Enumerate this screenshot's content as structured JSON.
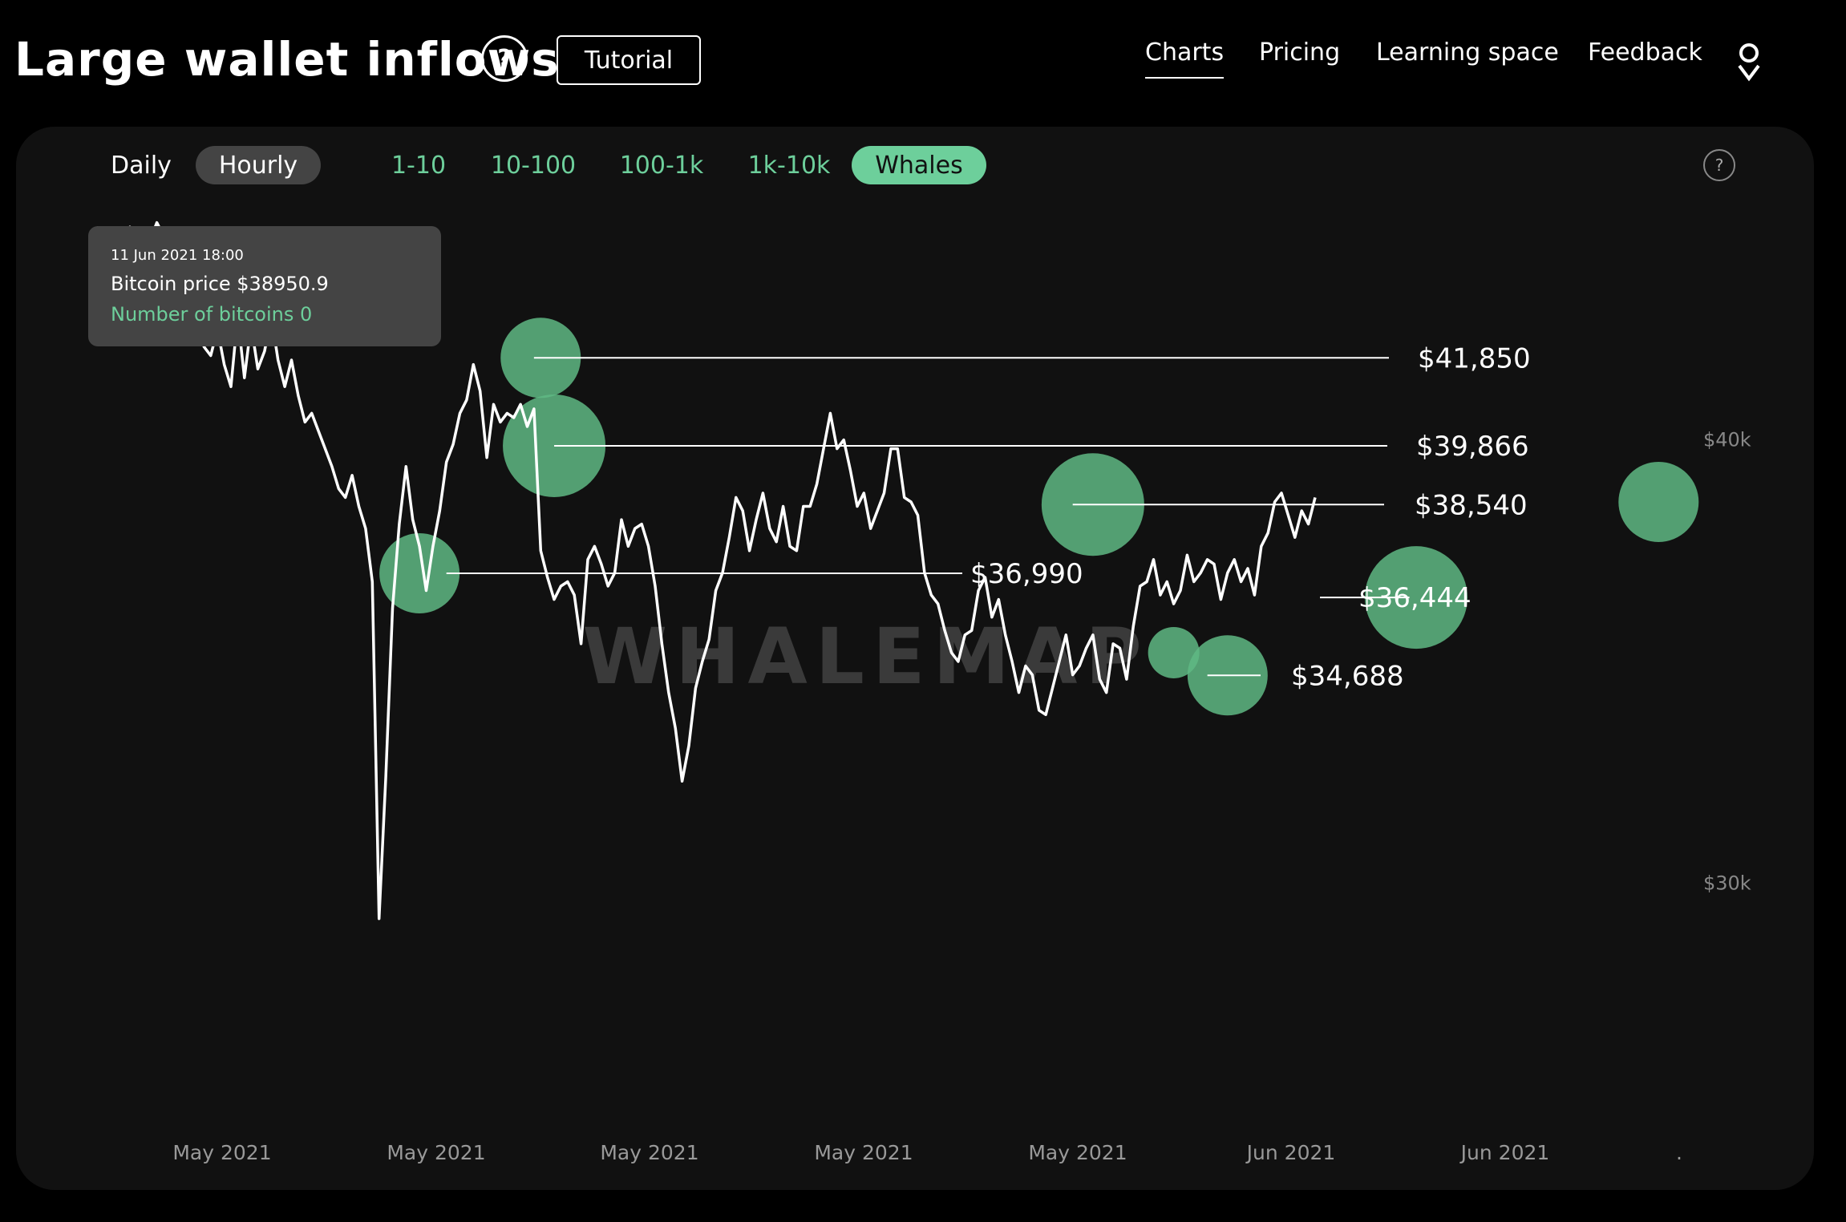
{
  "header": {
    "title": "Large wallet inflows",
    "help_label": "?",
    "tutorial_label": "Tutorial",
    "nav": [
      "Charts",
      "Pricing",
      "Learning space",
      "Feedback"
    ],
    "active_nav": "Charts"
  },
  "controls": {
    "interval_tabs": [
      "Daily",
      "Hourly"
    ],
    "selected_interval": "Hourly",
    "size_tabs": [
      "1-10",
      "10-100",
      "100-1k",
      "1k-10k",
      "Whales"
    ],
    "selected_size": "Whales",
    "help_label": "?"
  },
  "tooltip": {
    "date": "11 Jun 2021 18:00",
    "price": "Bitcoin price $38950.9",
    "coins": "Number of bitcoins 0"
  },
  "colors": {
    "accent": "#6dcf9b",
    "bubble": "#5fb884",
    "panel": "#111111",
    "line": "#ffffff"
  },
  "chart_data": {
    "type": "line",
    "watermark": "WHALEMAP",
    "y_tick_labels": [
      "$40k",
      "$30k"
    ],
    "x_tick_labels": [
      "May 2021",
      "May 2021",
      "May 2021",
      "May 2021",
      "May 2021",
      "Jun 2021",
      "Jun 2021",
      "."
    ],
    "ylim": [
      24600,
      45400
    ],
    "level_labels": [
      "$41,850",
      "$39,866",
      "$38,540",
      "$36,990",
      "$36,444",
      "$34,688"
    ],
    "levels": [
      {
        "price": 41850,
        "start_index": 65
      },
      {
        "price": 39866,
        "start_index": 68
      },
      {
        "price": 38540,
        "start_index": 145
      },
      {
        "price": 36990,
        "start_index": 52
      },
      {
        "price": 36444,
        "start_index": 195
      },
      {
        "price": 34688,
        "start_index": 165
      }
    ],
    "price_series": [
      44800,
      44600,
      44200,
      44700,
      44300,
      44800,
      44100,
      43900,
      44500,
      44900,
      44600,
      44200,
      43700,
      43200,
      43300,
      42800,
      42100,
      41900,
      42500,
      41700,
      41200,
      42800,
      41400,
      42600,
      41600,
      42000,
      42800,
      41800,
      41200,
      41800,
      41000,
      40400,
      40600,
      40200,
      39800,
      39400,
      38900,
      38700,
      39200,
      38500,
      38000,
      36800,
      29200,
      32400,
      36200,
      38100,
      39400,
      38200,
      37600,
      36600,
      37600,
      38400,
      39500,
      39900,
      40600,
      40900,
      41700,
      41100,
      39600,
      40800,
      40400,
      40600,
      40500,
      40800,
      40300,
      40700,
      37500,
      36900,
      36400,
      36700,
      36800,
      36500,
      35400,
      37300,
      37600,
      37200,
      36700,
      37000,
      38200,
      37600,
      38000,
      38100,
      37600,
      36700,
      35400,
      34300,
      33500,
      32300,
      33100,
      34400,
      35000,
      35500,
      36600,
      37000,
      37800,
      38700,
      38400,
      37500,
      38200,
      38800,
      38000,
      37700,
      38500,
      37600,
      37500,
      38500,
      38500,
      39000,
      39800,
      40600,
      39800,
      40000,
      39300,
      38500,
      38800,
      38000,
      38400,
      38800,
      39800,
      39800,
      38700,
      38600,
      38300,
      37000,
      36500,
      36300,
      35700,
      35200,
      35000,
      35600,
      35700,
      36600,
      36900,
      36000,
      36400,
      35600,
      35000,
      34300,
      34900,
      34700,
      33900,
      33800,
      34400,
      35000,
      35600,
      34700,
      34900,
      35300,
      35600,
      34600,
      34300,
      35400,
      35300,
      34600,
      35800,
      36700,
      36800,
      37300,
      36500,
      36800,
      36300,
      36600,
      37400,
      36800,
      37000,
      37300,
      37200,
      36400,
      37000,
      37300,
      36800,
      37100,
      36500,
      37600,
      37900,
      38600,
      38800,
      38300,
      37800,
      38400,
      38100,
      38700
    ],
    "bubbles": [
      {
        "index": 48,
        "price": 36990,
        "size": "medium"
      },
      {
        "index": 66,
        "price": 41850,
        "size": "medium"
      },
      {
        "index": 68,
        "price": 39866,
        "size": "large"
      },
      {
        "index": 148,
        "price": 38540,
        "size": "large"
      },
      {
        "index": 160,
        "price": 35200,
        "size": "small"
      },
      {
        "index": 168,
        "price": 34688,
        "size": "medium"
      },
      {
        "index": 196,
        "price": 36444,
        "size": "large"
      },
      {
        "index": 232,
        "price": 38600,
        "size": "medium"
      }
    ]
  }
}
